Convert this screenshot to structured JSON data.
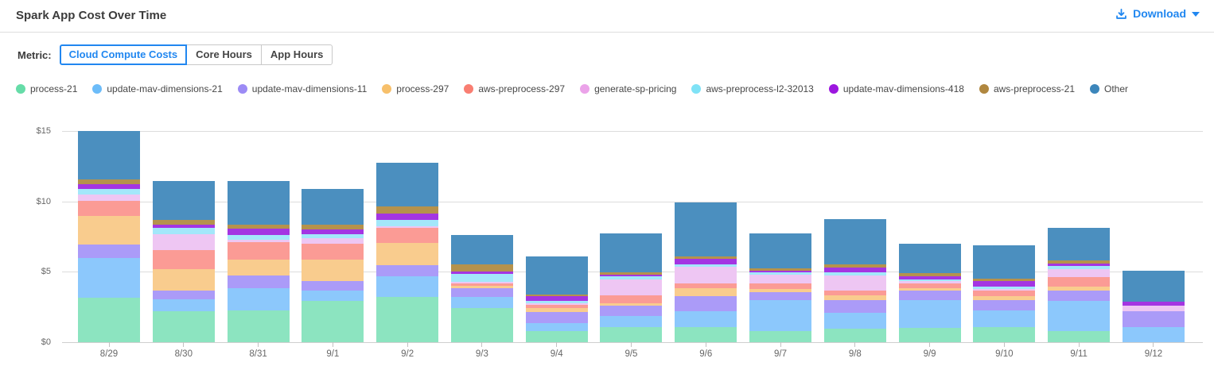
{
  "header": {
    "title": "Spark App Cost Over Time",
    "download_label": "Download"
  },
  "metric": {
    "label": "Metric:",
    "options": [
      {
        "label": "Cloud Compute Costs",
        "selected": true
      },
      {
        "label": "Core Hours",
        "selected": false
      },
      {
        "label": "App Hours",
        "selected": false
      }
    ]
  },
  "colors": {
    "accent": "#2187f0",
    "grid": "#dcdcdc",
    "axis_text": "#666666",
    "title_text": "#3b3b3b"
  },
  "chart_data": {
    "type": "bar",
    "stacked": true,
    "grid": true,
    "legend_position": "top",
    "ylabel_prefix": "$",
    "y_ticks": [
      0,
      5,
      10,
      15
    ],
    "ylim": [
      0,
      15
    ],
    "categories": [
      "8/29",
      "8/30",
      "8/31",
      "9/1",
      "9/2",
      "9/3",
      "9/4",
      "9/5",
      "9/6",
      "9/7",
      "9/8",
      "9/9",
      "9/10",
      "9/11",
      "9/12"
    ],
    "series": [
      {
        "name": "process-21",
        "color": "#8CE4C0",
        "dot": "#66DCA8",
        "values": [
          3.16,
          2.22,
          2.27,
          2.93,
          3.2,
          2.41,
          0.81,
          1.05,
          1.09,
          0.81,
          0.94,
          1.0,
          1.05,
          0.81,
          0
        ]
      },
      {
        "name": "update-mav-dimensions-21",
        "color": "#8CC8FC",
        "dot": "#6CBCF9",
        "values": [
          2.82,
          0.84,
          1.55,
          0.73,
          1.5,
          0.79,
          0.56,
          0.79,
          1.13,
          2.2,
          1.13,
          2.01,
          1.22,
          2.12,
          1.09
        ]
      },
      {
        "name": "update-mav-dimensions-11",
        "color": "#AB9BF8",
        "dot": "#9C8BF5",
        "values": [
          0.94,
          0.62,
          0.94,
          0.68,
          0.75,
          0.63,
          0.77,
          0.75,
          1.03,
          0.53,
          0.94,
          0.67,
          0.7,
          0.75,
          1.09
        ]
      },
      {
        "name": "process-297",
        "color": "#F9CC8E",
        "dot": "#F7C06B",
        "values": [
          2.07,
          1.49,
          1.12,
          1.54,
          1.62,
          0.19,
          0.27,
          0.19,
          0.57,
          0.22,
          0.3,
          0.14,
          0.28,
          0.29,
          0
        ]
      },
      {
        "name": "aws-preprocess-297",
        "color": "#FB9B95",
        "dot": "#F97E72",
        "values": [
          1.03,
          1.37,
          1.23,
          1.13,
          1.07,
          0.15,
          0.26,
          0.56,
          0.34,
          0.43,
          0.37,
          0.37,
          0.42,
          0.64,
          0
        ]
      },
      {
        "name": "generate-sp-pricing",
        "color": "#EEC6F3",
        "dot": "#EBA3E9",
        "values": [
          0.47,
          1.13,
          0.15,
          0.38,
          0.1,
          0.12,
          0.11,
          1.13,
          1.2,
          0.62,
          1.08,
          0.14,
          0.11,
          0.58,
          0.41
        ]
      },
      {
        "name": "aws-preprocess-l2-32013",
        "color": "#A3E7FA",
        "dot": "#7FE2F6",
        "values": [
          0.41,
          0.47,
          0.37,
          0.28,
          0.45,
          0.56,
          0.15,
          0.19,
          0.18,
          0.14,
          0.19,
          0.14,
          0.19,
          0.22,
          0
        ]
      },
      {
        "name": "update-mav-dimensions-418",
        "color": "#A435E2",
        "dot": "#9C16DF",
        "values": [
          0.3,
          0.19,
          0.42,
          0.32,
          0.43,
          0.15,
          0.32,
          0.15,
          0.4,
          0.14,
          0.37,
          0.23,
          0.37,
          0.19,
          0.28
        ]
      },
      {
        "name": "aws-preprocess-21",
        "color": "#B5924C",
        "dot": "#B0873F",
        "values": [
          0.36,
          0.37,
          0.32,
          0.34,
          0.51,
          0.54,
          0.13,
          0.17,
          0.17,
          0.17,
          0.19,
          0.21,
          0.17,
          0.19,
          0
        ]
      },
      {
        "name": "Other",
        "color": "#4B8FBF",
        "dot": "#3C86BB",
        "values": [
          3.44,
          2.77,
          3.1,
          2.54,
          3.12,
          2.09,
          2.73,
          2.73,
          3.82,
          2.45,
          3.23,
          2.06,
          2.37,
          2.35,
          2.21
        ]
      }
    ]
  }
}
